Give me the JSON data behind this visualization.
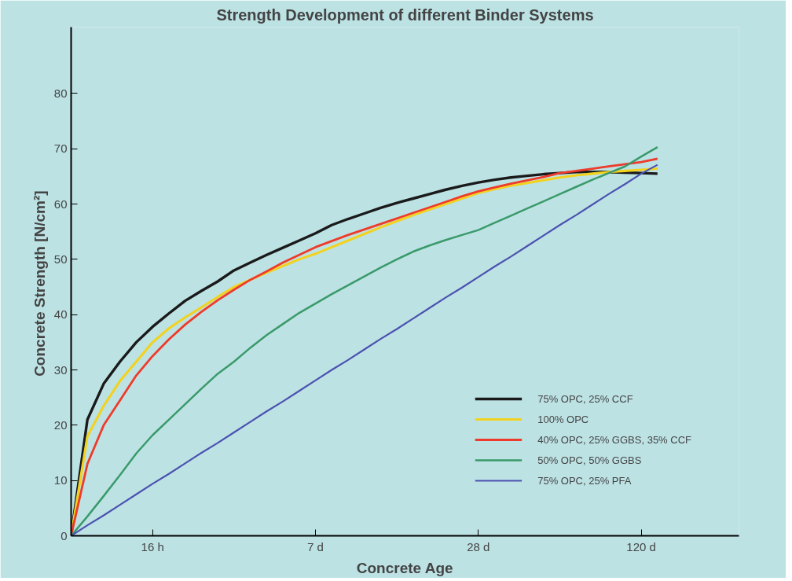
{
  "chart_data": {
    "type": "line",
    "title": "Strength Development of different Binder Systems",
    "xlabel": "Concrete Age",
    "ylabel": "Concrete Strength  [N/cm²]",
    "categories": [
      null,
      null,
      null,
      null,
      null,
      "16 h",
      null,
      null,
      null,
      null,
      null,
      null,
      null,
      null,
      null,
      "7 d",
      null,
      null,
      null,
      null,
      null,
      null,
      null,
      null,
      null,
      "28 d",
      null,
      null,
      null,
      null,
      null,
      null,
      null,
      null,
      null,
      "120 d",
      null,
      null,
      null,
      null,
      null,
      null
    ],
    "ylim": [
      0,
      92
    ],
    "yticks": [
      0,
      10,
      20,
      30,
      40,
      50,
      60,
      70,
      80
    ],
    "grid": false,
    "legend": "bottom right",
    "line_style": "solid",
    "series": [
      {
        "name": "75% OPC, 25% CCF",
        "color": "#1a1a1a",
        "values": [
          0,
          21,
          27.5,
          31.5,
          35,
          37.8,
          40.2,
          42.5,
          44.3,
          46,
          48,
          49.4,
          50.8,
          52.1,
          53.4,
          54.7,
          56.2,
          57.3,
          58.3,
          59.3,
          60.2,
          61,
          61.8,
          62.6,
          63.3,
          63.9,
          64.4,
          64.8,
          65.1,
          65.4,
          65.6,
          65.8,
          65.8,
          65.8,
          65.7,
          65.6,
          65.5,
          null,
          null,
          null,
          null,
          null
        ]
      },
      {
        "name": "100% OPC",
        "color": "#f2d21f",
        "values": [
          0,
          18,
          23.5,
          28,
          31.5,
          35,
          37.5,
          39.5,
          41.3,
          43.2,
          45,
          46.3,
          47.6,
          48.8,
          50,
          51,
          52.2,
          53.4,
          54.6,
          55.8,
          56.9,
          58,
          59,
          60,
          61,
          62,
          62.7,
          63.3,
          63.8,
          64.3,
          64.8,
          65.2,
          65.5,
          65.8,
          66,
          66.2,
          66.4,
          null,
          null,
          null,
          null,
          null
        ]
      },
      {
        "name": "40% OPC, 25% GGBS, 35% CCF",
        "color": "#ee3b2b",
        "values": [
          0,
          13,
          20,
          24.5,
          29,
          32.5,
          35.5,
          38.2,
          40.5,
          42.6,
          44.5,
          46.3,
          47.8,
          49.4,
          50.8,
          52.2,
          53.3,
          54.4,
          55.4,
          56.4,
          57.4,
          58.4,
          59.4,
          60.4,
          61.4,
          62.3,
          63,
          63.7,
          64.3,
          64.9,
          65.6,
          66,
          66.4,
          66.8,
          67.2,
          67.6,
          68.2,
          null,
          null,
          null,
          null,
          null
        ]
      },
      {
        "name": "50% OPC, 50% GGBS",
        "color": "#3a9a6a",
        "values": [
          0,
          3.5,
          7.2,
          11,
          14.9,
          18.2,
          21,
          23.8,
          26.6,
          29.3,
          31.5,
          34,
          36.3,
          38.3,
          40.3,
          42,
          43.7,
          45.3,
          46.9,
          48.5,
          50,
          51.4,
          52.5,
          53.5,
          54.4,
          55.3,
          56.6,
          57.9,
          59.2,
          60.5,
          61.8,
          63.1,
          64.4,
          65.6,
          66.8,
          68.6,
          70.3,
          null,
          null,
          null,
          null,
          null
        ]
      },
      {
        "name": "75% OPC, 25% PFA",
        "color": "#4b52b0",
        "values": [
          0,
          1.9,
          3.7,
          5.6,
          7.5,
          9.4,
          11.2,
          13.1,
          15,
          16.8,
          18.7,
          20.6,
          22.5,
          24.3,
          26.2,
          28.1,
          30,
          31.8,
          33.7,
          35.6,
          37.4,
          39.3,
          41.2,
          43.1,
          44.9,
          46.8,
          48.7,
          50.5,
          52.4,
          54.3,
          56.2,
          58,
          59.9,
          61.8,
          63.6,
          65.5,
          67.1,
          null,
          null,
          null,
          null,
          null
        ]
      }
    ]
  }
}
